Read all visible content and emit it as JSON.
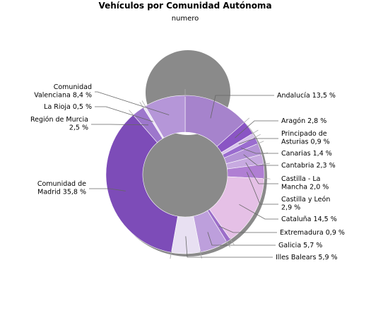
{
  "chart_data": {
    "type": "pie",
    "donut": true,
    "title": "Vehículos por Comunidad Autónoma",
    "subtitle": "numero",
    "unit": "%",
    "slices": [
      {
        "name": "Andalucía",
        "value": 13.5,
        "label_lines": [
          "Andalucía 13,5 %"
        ],
        "color": "#a683cc"
      },
      {
        "name": "Aragón",
        "value": 2.8,
        "label_lines": [
          "Aragón 2,8 %"
        ],
        "color": "#8a55c4"
      },
      {
        "name": "Principado de Asturias",
        "value": 0.9,
        "label_lines": [
          "Principado de",
          "Asturias 0,9 %"
        ],
        "color": "#d7c2ea"
      },
      {
        "name": "Canarias",
        "value": 1.4,
        "label_lines": [
          "Canarias 1,4 %"
        ],
        "color": "#9a6ccf"
      },
      {
        "name": "Cantabria",
        "value": 2.3,
        "label_lines": [
          "Cantabria 2,3 %"
        ],
        "color": "#b493d6"
      },
      {
        "name": "Castilla - La Mancha",
        "value": 2.0,
        "label_lines": [
          "Castilla - La",
          "Mancha 2,0 %"
        ],
        "color": "#c7aae0"
      },
      {
        "name": "Castilla y León",
        "value": 2.9,
        "label_lines": [
          "Castilla y León",
          "2,9 %"
        ],
        "color": "#b07fd3"
      },
      {
        "name": "Cataluña",
        "value": 14.5,
        "label_lines": [
          "Cataluña 14,5 %"
        ],
        "color": "#e5c0e6"
      },
      {
        "name": "Extremadura",
        "value": 0.9,
        "label_lines": [
          "Extremadura 0,9 %"
        ],
        "color": "#9c6ec9"
      },
      {
        "name": "Galicia",
        "value": 5.7,
        "label_lines": [
          "Galicia 5,7 %"
        ],
        "color": "#bd9fdc"
      },
      {
        "name": "Illes Balears",
        "value": 5.9,
        "label_lines": [
          "Illes Balears 5,9 %"
        ],
        "color": "#e8e0f2"
      },
      {
        "name": "Comunidad de Madrid",
        "value": 35.8,
        "label_lines": [
          "Comunidad de",
          "Madrid 35,8 %"
        ],
        "color": "#7d4cb8"
      },
      {
        "name": "Región de Murcia",
        "value": 2.5,
        "label_lines": [
          "Región de Murcia",
          "2,5 %"
        ],
        "color": "#9d77cc"
      },
      {
        "name": "La Rioja",
        "value": 0.5,
        "label_lines": [
          "La Rioja 0,5 %"
        ],
        "color": "#ece5f4"
      },
      {
        "name": "Comunidad Valenciana",
        "value": 8.4,
        "label_lines": [
          "Comunidad",
          "Valenciana 8,4 %"
        ],
        "color": "#b596d8"
      }
    ]
  }
}
